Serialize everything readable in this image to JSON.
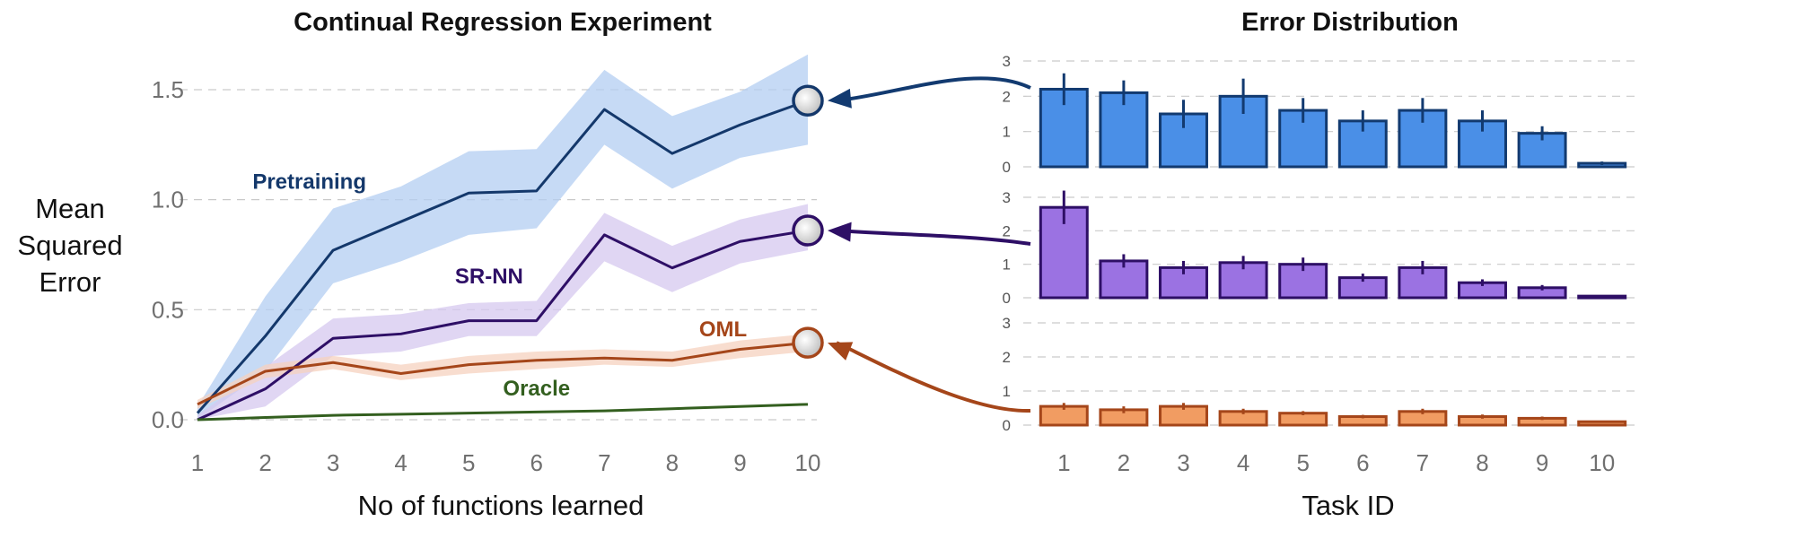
{
  "chart_data": [
    {
      "type": "line",
      "title": "Continual Regression Experiment",
      "xlabel": "No of functions learned",
      "ylabel": [
        "Mean",
        "Squared",
        "Error"
      ],
      "x": [
        1,
        2,
        3,
        4,
        5,
        6,
        7,
        8,
        9,
        10
      ],
      "x_ticks": [
        "1",
        "2",
        "3",
        "4",
        "5",
        "6",
        "7",
        "8",
        "9",
        "10"
      ],
      "y_ticks": [
        "0.0",
        "0.5",
        "1.0",
        "1.5"
      ],
      "y_tick_values": [
        0,
        0.5,
        1.0,
        1.5
      ],
      "xlim": [
        1,
        10
      ],
      "ylim": [
        0,
        1.72
      ],
      "grid": true,
      "series": [
        {
          "name": "Pretraining",
          "color": "#14386b",
          "band_color": "#b3cdf1",
          "values": [
            0.03,
            0.38,
            0.77,
            0.9,
            1.03,
            1.04,
            1.41,
            1.21,
            1.34,
            1.45
          ],
          "upper": [
            0.06,
            0.56,
            0.96,
            1.06,
            1.22,
            1.23,
            1.59,
            1.38,
            1.49,
            1.66
          ],
          "lower": [
            0.0,
            0.22,
            0.62,
            0.72,
            0.84,
            0.87,
            1.25,
            1.05,
            1.19,
            1.25
          ]
        },
        {
          "name": "SR-NN",
          "color": "#2e0f66",
          "band_color": "#d6c8ef",
          "values": [
            0.0,
            0.14,
            0.37,
            0.39,
            0.45,
            0.45,
            0.84,
            0.69,
            0.81,
            0.86
          ],
          "upper": [
            0.02,
            0.24,
            0.46,
            0.48,
            0.53,
            0.54,
            0.94,
            0.79,
            0.91,
            0.98
          ],
          "lower": [
            0.0,
            0.06,
            0.29,
            0.31,
            0.38,
            0.38,
            0.72,
            0.58,
            0.71,
            0.77
          ]
        },
        {
          "name": "OML",
          "color": "#a5461a",
          "band_color": "#f6d2bf",
          "values": [
            0.07,
            0.22,
            0.26,
            0.21,
            0.25,
            0.27,
            0.28,
            0.27,
            0.32,
            0.35
          ],
          "upper": [
            0.09,
            0.25,
            0.29,
            0.25,
            0.29,
            0.31,
            0.32,
            0.31,
            0.36,
            0.39
          ],
          "lower": [
            0.05,
            0.19,
            0.23,
            0.18,
            0.21,
            0.23,
            0.25,
            0.24,
            0.28,
            0.31
          ]
        },
        {
          "name": "Oracle",
          "color": "#335f1f",
          "values": [
            0.0,
            0.01,
            0.02,
            0.025,
            0.03,
            0.035,
            0.04,
            0.05,
            0.06,
            0.07
          ]
        }
      ]
    },
    {
      "type": "bar",
      "title": "Error Distribution",
      "xlabel": "Task ID",
      "categories": [
        "1",
        "2",
        "3",
        "4",
        "5",
        "6",
        "7",
        "8",
        "9",
        "10"
      ],
      "panels": [
        {
          "name": "Pretraining",
          "color": "#4a8fe7",
          "edge": "#123a70",
          "y_ticks": [
            "0",
            "1",
            "2",
            "3"
          ],
          "ylim": [
            0,
            3
          ],
          "values": [
            2.2,
            2.1,
            1.5,
            2.0,
            1.6,
            1.3,
            1.6,
            1.3,
            0.95,
            0.1
          ],
          "errors": [
            0.45,
            0.35,
            0.4,
            0.5,
            0.35,
            0.3,
            0.35,
            0.3,
            0.2,
            0.05
          ]
        },
        {
          "name": "SR-NN",
          "color": "#9b72e2",
          "edge": "#2e0f66",
          "y_ticks": [
            "0",
            "1",
            "2",
            "3"
          ],
          "ylim": [
            0,
            3
          ],
          "values": [
            2.7,
            1.1,
            0.9,
            1.05,
            1.0,
            0.6,
            0.9,
            0.45,
            0.3,
            0.05
          ],
          "errors": [
            0.5,
            0.2,
            0.2,
            0.2,
            0.2,
            0.12,
            0.2,
            0.1,
            0.08,
            0.02
          ]
        },
        {
          "name": "OML",
          "color": "#f19c62",
          "edge": "#a5461a",
          "y_ticks": [
            "0",
            "1",
            "2",
            "3"
          ],
          "ylim": [
            0,
            3
          ],
          "values": [
            0.55,
            0.45,
            0.55,
            0.4,
            0.35,
            0.25,
            0.4,
            0.25,
            0.2,
            0.1
          ],
          "errors": [
            0.1,
            0.1,
            0.1,
            0.08,
            0.06,
            0.05,
            0.08,
            0.06,
            0.05,
            0.03
          ]
        }
      ]
    }
  ]
}
